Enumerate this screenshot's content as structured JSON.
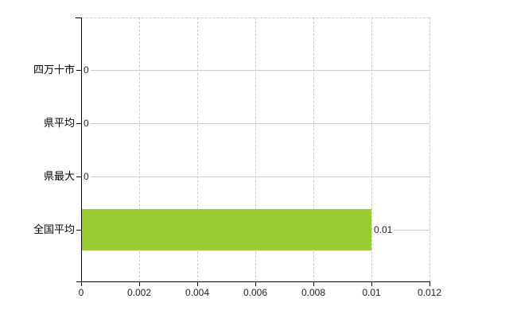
{
  "chart_data": {
    "type": "bar",
    "orientation": "horizontal",
    "title": "",
    "xlabel": "",
    "ylabel": "",
    "categories": [
      "四万十市",
      "県平均",
      "県最大",
      "全国平均"
    ],
    "values": [
      0,
      0,
      0,
      0.01
    ],
    "value_labels": [
      "0",
      "0",
      "0",
      "0.01"
    ],
    "xlim": [
      0,
      0.012
    ],
    "x_ticks": [
      0,
      0.002,
      0.004,
      0.006,
      0.008,
      0.01,
      0.012
    ],
    "x_tick_labels": [
      "0",
      "0.002",
      "0.004",
      "0.006",
      "0.008",
      "0.01",
      "0.012"
    ],
    "grid": true,
    "legend": false,
    "bar_color": "#99cc33",
    "grid_color": "#cccccc",
    "axis_color": "#000000",
    "category_label_color": "#000000",
    "value_label_color": "#222222",
    "background_color": "#ffffff"
  }
}
